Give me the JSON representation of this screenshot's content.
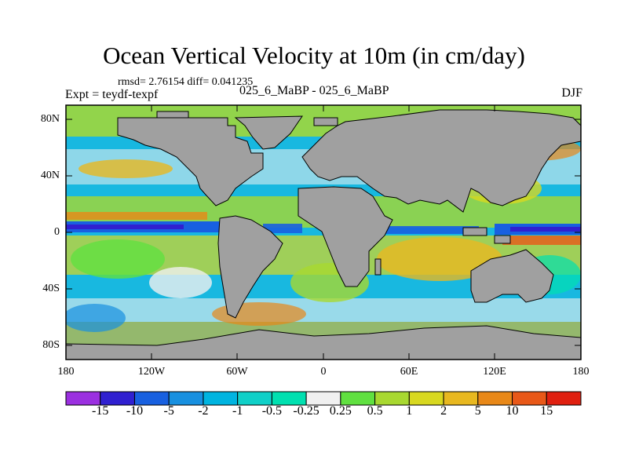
{
  "title": "Ocean Vertical Velocity at 10m (in cm/day)",
  "stats": "rmsd= 2.76154 diff= 0.041235",
  "experiment": "Expt = teydf-texpf",
  "center_label": "025_6_MaBP - 025_6_MaBP",
  "season": "DJF",
  "map": {
    "projection": "cylindrical-equidistant",
    "land_color": "#a0a0a0",
    "lat_labels": [
      "80N",
      "40N",
      "0",
      "40S",
      "80S"
    ],
    "lon_labels": [
      "180",
      "120W",
      "60W",
      "0",
      "60E",
      "120E",
      "180"
    ]
  },
  "colorbar": {
    "colors": [
      "#9b30e0",
      "#3020d0",
      "#1860e0",
      "#1890e0",
      "#00b4e0",
      "#10d0c8",
      "#00e0b0",
      "#f0f0f0",
      "#60e040",
      "#a8d830",
      "#d8d820",
      "#e8b820",
      "#e88818",
      "#e85818",
      "#e02010"
    ],
    "labels": [
      "-15",
      "-10",
      "-5",
      "-2",
      "-1",
      "-0.5",
      "-0.25",
      "0.25",
      "0.5",
      "1",
      "2",
      "5",
      "10",
      "15"
    ]
  }
}
